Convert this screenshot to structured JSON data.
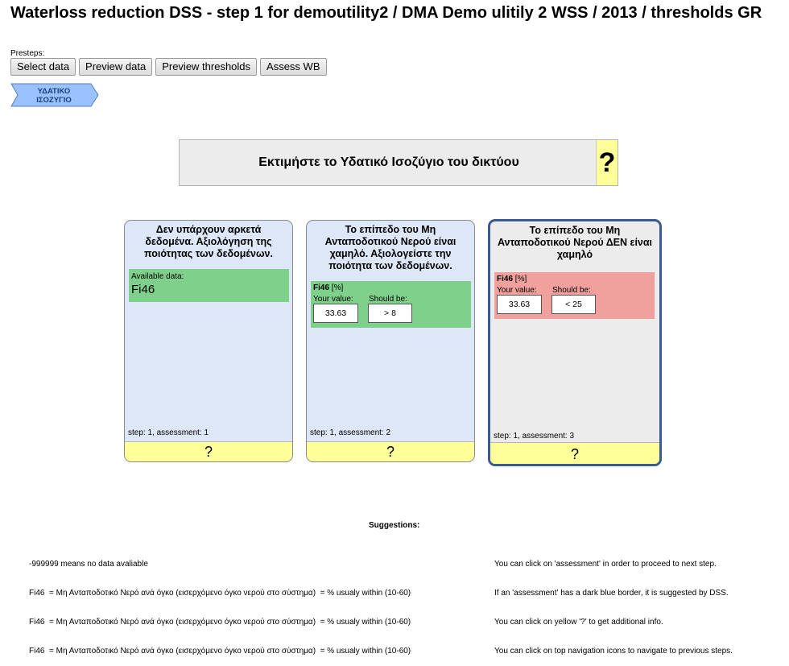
{
  "header": {
    "title": "Waterloss reduction DSS - step 1 for demoutility2 / DMA Demo ulitily 2 WSS / 2013 / thresholds GR"
  },
  "presteps": {
    "label": "Presteps:",
    "buttons": [
      "Select data",
      "Preview data",
      "Preview thresholds",
      "Assess WB"
    ]
  },
  "breadcrumb": {
    "line1": "ΥΔΑΤΙΚΟ",
    "line2": "ΙΣΟΖΥΓΙΟ",
    "color": "#99c2ff"
  },
  "question": {
    "text": "Εκτιμήστε το Υδατικό Ισοζύγιο του δικτύου",
    "help": "?"
  },
  "cards": [
    {
      "title": "Δεν υπάρχουν αρκετά δεδομένα. Αξιολόγηση της ποιότητας των δεδομένων.",
      "available_label": "Available data:",
      "available_value": "Fi46",
      "step_text": "step: 1, assessment: 1",
      "help": "?",
      "suggested": false
    },
    {
      "title": "Το επίπεδο του Μη Ανταποδοτικού Νερού είναι χαμηλό. Αξιολογείστε την ποιότητα των δεδομένων.",
      "indicator": "Fi46",
      "unit": "[%]",
      "your_value_label": "Your value:",
      "should_be_label": "Should be:",
      "your_value": "33.63",
      "should_be": ">  8",
      "status_color": "#7fd08b",
      "step_text": "step: 1, assessment: 2",
      "help": "?",
      "suggested": false
    },
    {
      "title": "Το επίπεδο του Μη Ανταποδοτικού Νερού ΔΕΝ είναι χαμηλό",
      "indicator": "Fi46",
      "unit": "[%]",
      "your_value_label": "Your value:",
      "should_be_label": "Should be:",
      "your_value": "33.63",
      "should_be": "<  25",
      "status_color": "#f0a19d",
      "step_text": "step: 1, assessment: 3",
      "help": "?",
      "suggested": true
    }
  ],
  "suggestions": {
    "title": "Suggestions:",
    "left": [
      "-999999 means no data avaliable",
      "Fi46  = Μη Ανταποδοτικό Νερό ανά όγκο (εισερχόμενο όγκο νερού στο σύστημα)  = % usualy within (10-60)",
      "Fi46  = Μη Ανταποδοτικό Νερό ανά όγκο (εισερχόμενο όγκο νερού στο σύστημα)  = % usualy within (10-60)",
      "Fi46  = Μη Ανταποδοτικό Νερό ανά όγκο (εισερχόμενο όγκο νερού στο σύστημα)  = % usualy within (10-60)"
    ],
    "right": [
      "You can click on 'assessment' in order to proceed to next step.",
      "If an 'assessment' has a dark blue border, it is suggested by DSS.",
      "You can click on yellow '?' to get additional info.",
      "You can click on top navigation icons to navigate to previous steps."
    ]
  }
}
